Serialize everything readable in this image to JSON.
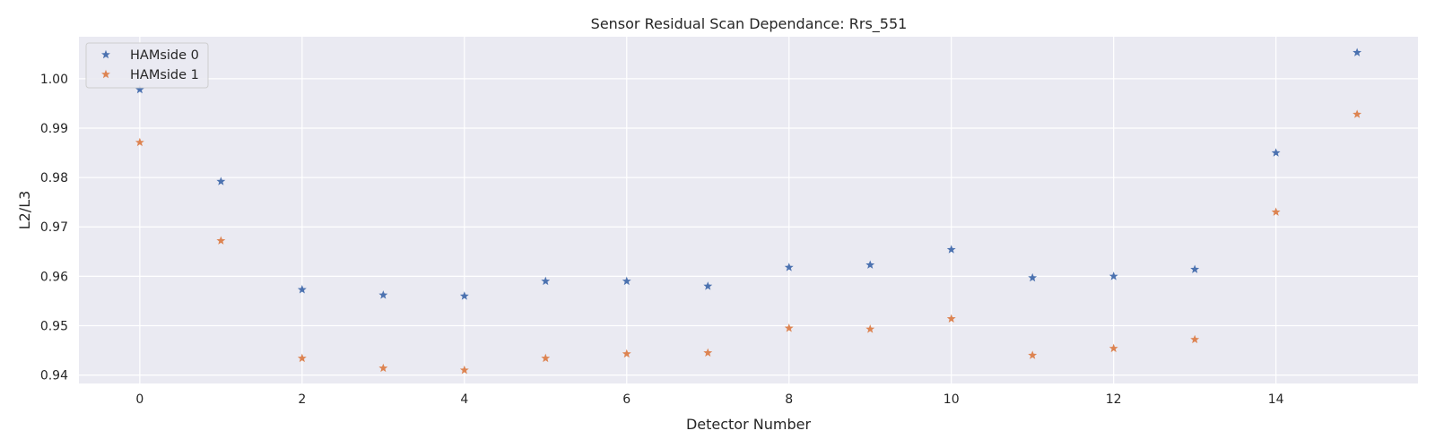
{
  "chart_data": {
    "type": "scatter",
    "title": "Sensor Residual Scan Dependance: Rrs_551",
    "xlabel": "Detector Number",
    "ylabel": "L2/L3",
    "xlim": [
      -0.75,
      15.75
    ],
    "ylim": [
      0.9383,
      1.0085
    ],
    "xticks": [
      0,
      2,
      4,
      6,
      8,
      10,
      12,
      14
    ],
    "xtick_labels": [
      "0",
      "2",
      "4",
      "6",
      "8",
      "10",
      "12",
      "14"
    ],
    "yticks": [
      0.94,
      0.95,
      0.96,
      0.97,
      0.98,
      0.99,
      1.0
    ],
    "ytick_labels": [
      "0.94",
      "0.95",
      "0.96",
      "0.97",
      "0.98",
      "0.99",
      "1.00"
    ],
    "grid": true,
    "legend_position": "top-left",
    "marker": "star",
    "x": [
      0,
      1,
      2,
      3,
      4,
      5,
      6,
      7,
      8,
      9,
      10,
      11,
      12,
      13,
      14,
      15
    ],
    "series": [
      {
        "name": "HAMside 0",
        "color": "#4c72b0",
        "values": [
          0.9978,
          0.9792,
          0.9573,
          0.9562,
          0.956,
          0.959,
          0.959,
          0.958,
          0.9618,
          0.9623,
          0.9654,
          0.9597,
          0.96,
          0.9614,
          0.985,
          1.0053
        ]
      },
      {
        "name": "HAMside 1",
        "color": "#dd8452",
        "values": [
          0.9871,
          0.9672,
          0.9434,
          0.9414,
          0.941,
          0.9434,
          0.9443,
          0.9445,
          0.9495,
          0.9493,
          0.9514,
          0.944,
          0.9454,
          0.9472,
          0.973,
          0.9928
        ]
      }
    ]
  }
}
